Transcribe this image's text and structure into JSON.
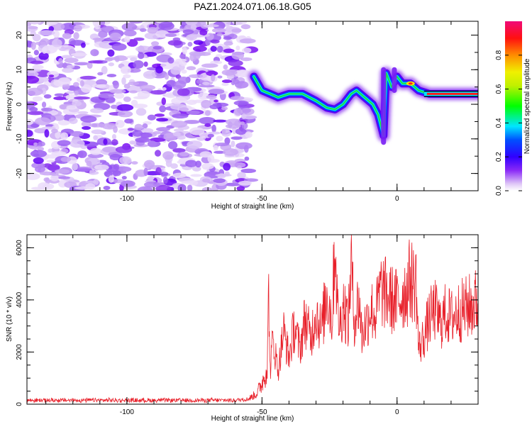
{
  "title": "PAZ1.2024.071.06.18.G05",
  "colors": {
    "snr_line": "#e8202a",
    "frame": "#000000"
  },
  "chart_data": [
    {
      "type": "heatmap",
      "xlabel": "Height of straight line (km)",
      "ylabel": "Frequency (Hz)",
      "xlim": [
        -137,
        30
      ],
      "ylim": [
        -25,
        24
      ],
      "x_ticks": [
        -100,
        -50,
        0
      ],
      "y_ticks": [
        -20,
        -10,
        0,
        10,
        20
      ],
      "colorbar": {
        "label": "Normalized spectral amplitude",
        "range": [
          0,
          1
        ],
        "ticks": [
          "0.0",
          "0.2",
          "0.4",
          "0.6",
          "0.8"
        ],
        "colormap": [
          "#ffffff",
          "#e0c8f7",
          "#6a00f5",
          "#0000ff",
          "#00e6ff",
          "#00ff00",
          "#e6f000",
          "#ff8c00",
          "#ff0000",
          "#f00a78"
        ]
      },
      "noise_region_x": [
        -137,
        -54
      ],
      "ridge": [
        {
          "x": -53,
          "y": 8
        },
        {
          "x": -50,
          "y": 4
        },
        {
          "x": -47,
          "y": 3
        },
        {
          "x": -44,
          "y": 2
        },
        {
          "x": -40,
          "y": 3
        },
        {
          "x": -35,
          "y": 3
        },
        {
          "x": -30,
          "y": 1
        },
        {
          "x": -26,
          "y": -1
        },
        {
          "x": -23,
          "y": -1.5
        },
        {
          "x": -20,
          "y": 0
        },
        {
          "x": -17,
          "y": 3
        },
        {
          "x": -15,
          "y": 4
        },
        {
          "x": -12,
          "y": 2
        },
        {
          "x": -9,
          "y": 0
        },
        {
          "x": -7,
          "y": -3
        },
        {
          "x": -5,
          "y": -9
        },
        {
          "x": -4,
          "y": 9
        },
        {
          "x": -2,
          "y": 5
        },
        {
          "x": 0,
          "y": 8
        },
        {
          "x": 2,
          "y": 6
        },
        {
          "x": 5,
          "y": 6
        },
        {
          "x": 8,
          "y": 4
        },
        {
          "x": 12,
          "y": 3
        },
        {
          "x": 20,
          "y": 3
        },
        {
          "x": 30,
          "y": 3
        }
      ]
    },
    {
      "type": "line",
      "xlabel": "Height of straight line (km)",
      "ylabel": "SNR (10 * v/v)",
      "xlim": [
        -137,
        30
      ],
      "ylim": [
        0,
        6500
      ],
      "x_ticks": [
        -100,
        -50,
        0
      ],
      "y_ticks": [
        0,
        2000,
        4000,
        6000
      ],
      "series": [
        {
          "x": [
            -137,
            -120,
            -100,
            -80,
            -60,
            -55,
            -52,
            -50,
            -48,
            -47.5,
            -47,
            -46,
            -44,
            -42,
            -40,
            -38,
            -36,
            -34,
            -32,
            -30,
            -28,
            -26,
            -24,
            -23,
            -22,
            -21,
            -20,
            -18,
            -17,
            -16,
            -15,
            -14,
            -13,
            -12,
            -11,
            -10,
            -8,
            -6,
            -4,
            -2,
            0,
            2,
            4,
            5,
            6,
            7,
            8,
            10,
            12,
            14,
            16,
            18,
            20,
            22,
            24,
            26,
            28,
            30
          ],
          "y": [
            150,
            150,
            150,
            150,
            150,
            200,
            400,
            800,
            1500,
            4600,
            1200,
            2500,
            1300,
            2800,
            1800,
            3000,
            2100,
            3300,
            2500,
            3600,
            2800,
            4300,
            3200,
            6500,
            3500,
            3000,
            3900,
            3100,
            5700,
            3300,
            3600,
            4000,
            2600,
            3000,
            3200,
            3700,
            3400,
            4400,
            4200,
            4000,
            3900,
            4200,
            4500,
            4900,
            4600,
            4800,
            2100,
            2600,
            3300,
            3600,
            3100,
            3500,
            3300,
            3500,
            3600,
            3700,
            3800,
            4000
          ]
        }
      ]
    }
  ]
}
